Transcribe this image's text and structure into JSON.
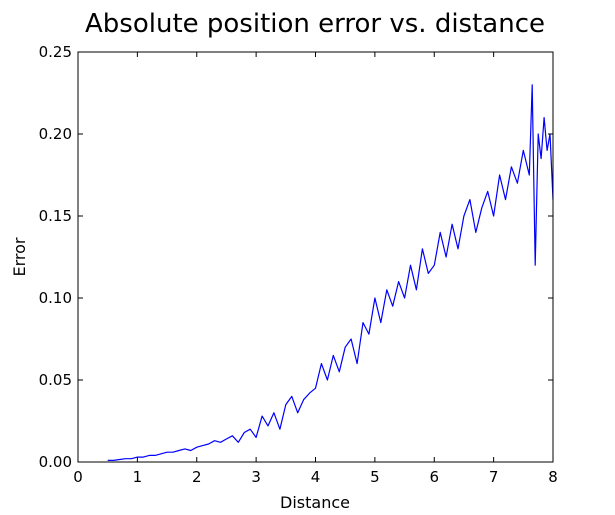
{
  "chart_data": {
    "type": "line",
    "title": "Absolute position error vs. distance",
    "xlabel": "Distance",
    "ylabel": "Error",
    "xlim": [
      0,
      8
    ],
    "ylim": [
      0,
      0.25
    ],
    "x_ticks": [
      "0",
      "1",
      "2",
      "3",
      "4",
      "5",
      "6",
      "7",
      "8"
    ],
    "y_ticks": [
      "0.00",
      "0.05",
      "0.10",
      "0.15",
      "0.20",
      "0.25"
    ],
    "grid": false,
    "legend": "none",
    "series": [
      {
        "color": "#0000ff",
        "x": [
          0.5,
          0.6,
          0.7,
          0.8,
          0.9,
          1.0,
          1.1,
          1.2,
          1.3,
          1.4,
          1.5,
          1.6,
          1.7,
          1.8,
          1.9,
          2.0,
          2.1,
          2.2,
          2.3,
          2.4,
          2.5,
          2.6,
          2.7,
          2.8,
          2.9,
          3.0,
          3.1,
          3.2,
          3.3,
          3.4,
          3.5,
          3.6,
          3.7,
          3.8,
          3.9,
          4.0,
          4.1,
          4.2,
          4.3,
          4.4,
          4.5,
          4.6,
          4.7,
          4.8,
          4.9,
          5.0,
          5.1,
          5.2,
          5.3,
          5.4,
          5.5,
          5.6,
          5.7,
          5.8,
          5.9,
          6.0,
          6.1,
          6.2,
          6.3,
          6.4,
          6.5,
          6.6,
          6.7,
          6.8,
          6.9,
          7.0,
          7.1,
          7.2,
          7.3,
          7.4,
          7.5,
          7.6,
          7.65,
          7.7,
          7.75,
          7.8,
          7.85,
          7.9,
          7.95,
          8.0
        ],
        "y": [
          0.001,
          0.001,
          0.0015,
          0.002,
          0.002,
          0.003,
          0.003,
          0.004,
          0.004,
          0.005,
          0.006,
          0.006,
          0.007,
          0.008,
          0.007,
          0.009,
          0.01,
          0.011,
          0.013,
          0.012,
          0.014,
          0.016,
          0.012,
          0.018,
          0.02,
          0.015,
          0.028,
          0.022,
          0.03,
          0.02,
          0.035,
          0.04,
          0.03,
          0.038,
          0.042,
          0.045,
          0.06,
          0.05,
          0.065,
          0.055,
          0.07,
          0.075,
          0.06,
          0.085,
          0.078,
          0.1,
          0.085,
          0.105,
          0.095,
          0.11,
          0.1,
          0.12,
          0.105,
          0.13,
          0.115,
          0.12,
          0.14,
          0.125,
          0.145,
          0.13,
          0.15,
          0.16,
          0.14,
          0.155,
          0.165,
          0.15,
          0.175,
          0.16,
          0.18,
          0.17,
          0.19,
          0.175,
          0.23,
          0.12,
          0.2,
          0.185,
          0.21,
          0.19,
          0.2,
          0.16
        ]
      }
    ]
  }
}
